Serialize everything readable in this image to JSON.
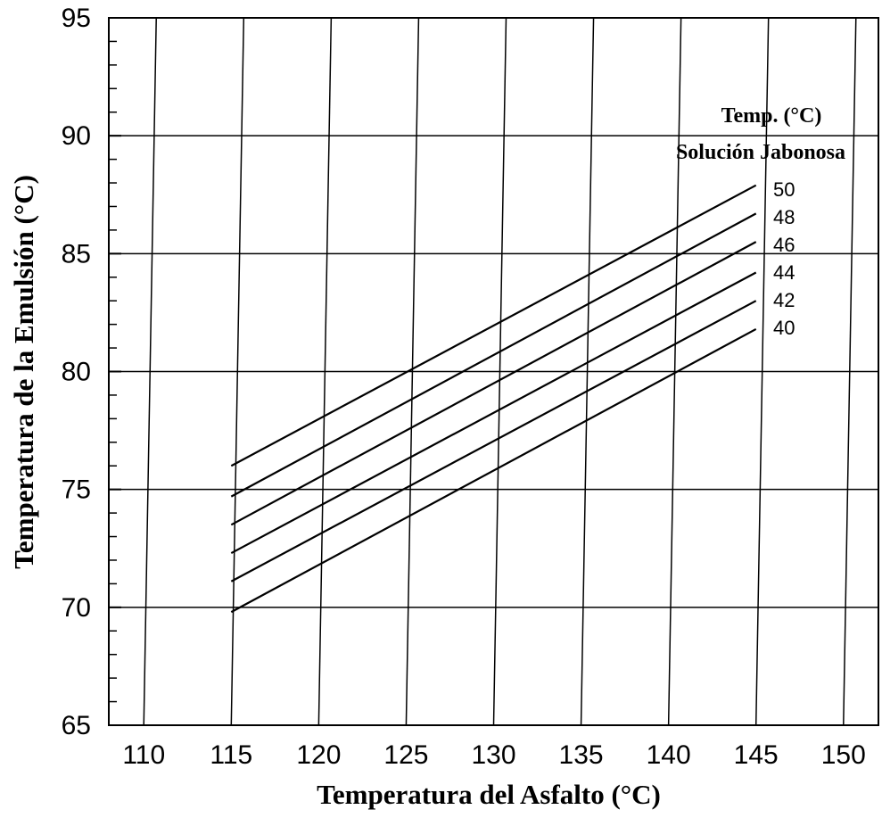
{
  "chart_data": {
    "type": "line",
    "title": "",
    "xlabel": "Temperatura del Asfalto (°C)",
    "ylabel": "Temperatura de la Emulsión (°C)",
    "xlim": [
      108,
      152
    ],
    "ylim": [
      65,
      95
    ],
    "x_ticks": [
      "110",
      "115",
      "120",
      "125",
      "130",
      "135",
      "140",
      "145",
      "150"
    ],
    "y_ticks": [
      "65",
      "70",
      "75",
      "80",
      "85",
      "90",
      "95"
    ],
    "grid": true,
    "grid_style": "slanted vertical lines, horizontal lines every 5 °C",
    "legend_title_line1": "Temp. (°C)",
    "legend_title_line2": "Solución Jabonosa",
    "legend_placement": "right, next to line ends",
    "line_color": "#000000",
    "series": [
      {
        "name": "50",
        "x": [
          115,
          145
        ],
        "y": [
          76.0,
          87.9
        ]
      },
      {
        "name": "48",
        "x": [
          115,
          145
        ],
        "y": [
          74.7,
          86.7
        ]
      },
      {
        "name": "46",
        "x": [
          115,
          145
        ],
        "y": [
          73.5,
          85.5
        ]
      },
      {
        "name": "44",
        "x": [
          115,
          145
        ],
        "y": [
          72.3,
          84.2
        ]
      },
      {
        "name": "42",
        "x": [
          115,
          145
        ],
        "y": [
          71.1,
          83.0
        ]
      },
      {
        "name": "40",
        "x": [
          115,
          145
        ],
        "y": [
          69.8,
          81.8
        ]
      }
    ]
  }
}
